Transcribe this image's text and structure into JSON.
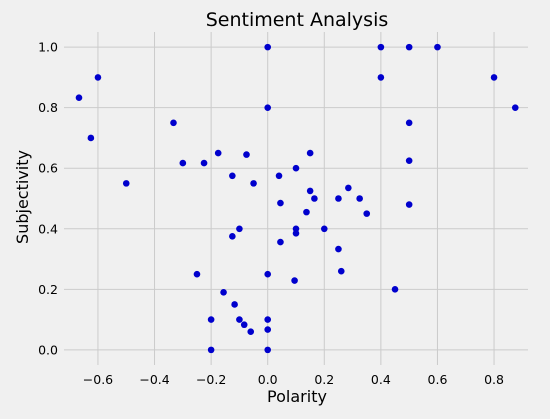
{
  "chart_data": {
    "type": "scatter",
    "title": "Sentiment Analysis",
    "xlabel": "Polarity",
    "ylabel": "Subjectivity",
    "xlim": [
      -0.72,
      0.92
    ],
    "ylim": [
      -0.05,
      1.05
    ],
    "xticks": [
      -0.6,
      -0.4,
      -0.2,
      0.0,
      0.2,
      0.4,
      0.6,
      0.8
    ],
    "xtick_labels": [
      "−0.6",
      "−0.4",
      "−0.2",
      "0.0",
      "0.2",
      "0.4",
      "0.6",
      "0.8"
    ],
    "yticks": [
      0.0,
      0.2,
      0.4,
      0.6,
      0.8,
      1.0
    ],
    "ytick_labels": [
      "0.0",
      "0.2",
      "0.4",
      "0.6",
      "0.8",
      "1.0"
    ],
    "grid": true,
    "marker_color": "#0000cd",
    "background_color": "#f0f0f0",
    "grid_color": "#cbcbcb",
    "points": [
      {
        "x": -0.667,
        "y": 0.833
      },
      {
        "x": -0.6,
        "y": 0.9
      },
      {
        "x": -0.625,
        "y": 0.7
      },
      {
        "x": -0.5,
        "y": 0.55
      },
      {
        "x": -0.333,
        "y": 0.75
      },
      {
        "x": -0.3,
        "y": 0.617
      },
      {
        "x": -0.225,
        "y": 0.617
      },
      {
        "x": -0.175,
        "y": 0.65
      },
      {
        "x": -0.125,
        "y": 0.575
      },
      {
        "x": -0.075,
        "y": 0.645
      },
      {
        "x": -0.05,
        "y": 0.55
      },
      {
        "x": -0.125,
        "y": 0.375
      },
      {
        "x": -0.1,
        "y": 0.4
      },
      {
        "x": -0.25,
        "y": 0.25
      },
      {
        "x": -0.2,
        "y": 0.1
      },
      {
        "x": -0.2,
        "y": 0.0
      },
      {
        "x": -0.156,
        "y": 0.19
      },
      {
        "x": -0.117,
        "y": 0.15
      },
      {
        "x": -0.1,
        "y": 0.1
      },
      {
        "x": -0.083,
        "y": 0.083
      },
      {
        "x": -0.06,
        "y": 0.06
      },
      {
        "x": 0.0,
        "y": 1.0
      },
      {
        "x": 0.0,
        "y": 0.8
      },
      {
        "x": 0.0,
        "y": 0.25
      },
      {
        "x": 0.0,
        "y": 0.1
      },
      {
        "x": 0.0,
        "y": 0.067
      },
      {
        "x": 0.0,
        "y": 0.0
      },
      {
        "x": 0.04,
        "y": 0.575
      },
      {
        "x": 0.045,
        "y": 0.485
      },
      {
        "x": 0.045,
        "y": 0.356
      },
      {
        "x": 0.1,
        "y": 0.6
      },
      {
        "x": 0.1,
        "y": 0.4
      },
      {
        "x": 0.1,
        "y": 0.385
      },
      {
        "x": 0.095,
        "y": 0.229
      },
      {
        "x": 0.15,
        "y": 0.65
      },
      {
        "x": 0.15,
        "y": 0.525
      },
      {
        "x": 0.165,
        "y": 0.5
      },
      {
        "x": 0.137,
        "y": 0.455
      },
      {
        "x": 0.2,
        "y": 0.4
      },
      {
        "x": 0.25,
        "y": 0.5
      },
      {
        "x": 0.285,
        "y": 0.535
      },
      {
        "x": 0.325,
        "y": 0.5
      },
      {
        "x": 0.35,
        "y": 0.45
      },
      {
        "x": 0.25,
        "y": 0.333
      },
      {
        "x": 0.26,
        "y": 0.26
      },
      {
        "x": 0.45,
        "y": 0.2
      },
      {
        "x": 0.4,
        "y": 1.0
      },
      {
        "x": 0.4,
        "y": 0.9
      },
      {
        "x": 0.5,
        "y": 1.0
      },
      {
        "x": 0.5,
        "y": 0.75
      },
      {
        "x": 0.5,
        "y": 0.625
      },
      {
        "x": 0.5,
        "y": 0.48
      },
      {
        "x": 0.6,
        "y": 1.0
      },
      {
        "x": 0.8,
        "y": 0.9
      },
      {
        "x": 0.875,
        "y": 0.8
      }
    ]
  }
}
